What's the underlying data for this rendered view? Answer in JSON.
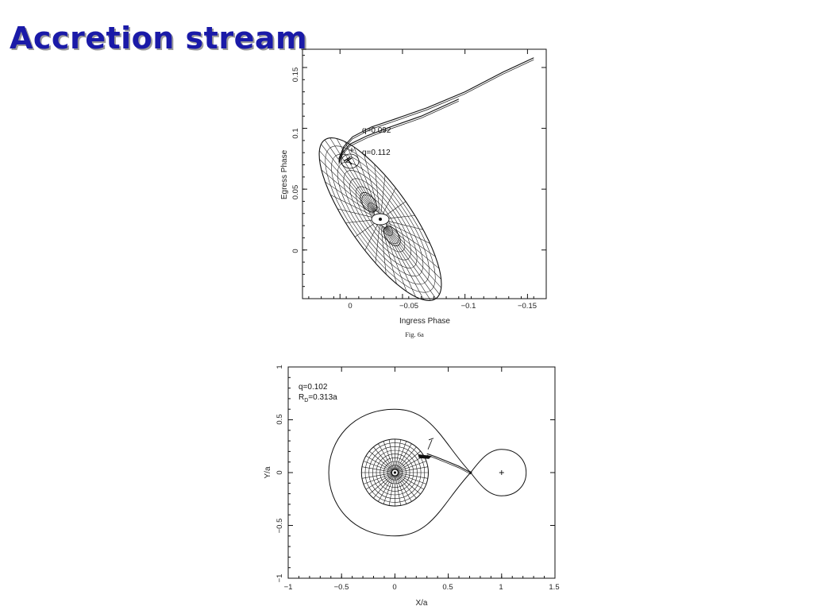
{
  "slide": {
    "title": "Accretion stream"
  },
  "chart_data": [
    {
      "type": "line",
      "title": "",
      "caption": "Fig. 6a",
      "xlabel": "Ingress Phase",
      "ylabel": "Egress Phase",
      "xlim": [
        0.03,
        -0.165
      ],
      "ylim": [
        -0.04,
        0.165
      ],
      "x_reversed": true,
      "x_ticks": [
        "0",
        "−0.05",
        "−0.1",
        "−0.15"
      ],
      "y_ticks": [
        "0",
        "0.05",
        "0.1",
        "0.15"
      ],
      "annotations": [
        {
          "text": "q=0.092",
          "x": -0.012,
          "y": 0.101
        },
        {
          "text": "q=0.112",
          "x": -0.012,
          "y": 0.081
        }
      ],
      "series": [
        {
          "name": "q=0.092",
          "x": [
            0.001,
            -0.003,
            -0.01,
            -0.025,
            -0.045,
            -0.07,
            -0.1,
            -0.13,
            -0.155
          ],
          "y": [
            0.075,
            0.085,
            0.093,
            0.101,
            0.108,
            0.117,
            0.13,
            0.146,
            0.158
          ]
        },
        {
          "name": "q=0.112",
          "x": [
            0.001,
            -0.002,
            -0.008,
            -0.022,
            -0.04,
            -0.065,
            -0.095
          ],
          "y": [
            0.072,
            0.08,
            0.087,
            0.094,
            0.101,
            0.11,
            0.124
          ]
        }
      ]
    },
    {
      "type": "line",
      "title": "",
      "xlabel": "X/a",
      "ylabel": "Y/a",
      "xlim": [
        -1,
        1.5
      ],
      "ylim": [
        -1,
        1
      ],
      "x_ticks": [
        "−1",
        "−0.5",
        "0",
        "0.5",
        "1",
        "1.5"
      ],
      "y_ticks": [
        "−1",
        "−0.5",
        "0",
        "0.5",
        "1"
      ],
      "annotations": [
        {
          "text": "q=0.102"
        },
        {
          "text": "R",
          "sub": "D",
          "suffix": "=0.313a"
        }
      ],
      "series": [
        {
          "name": "accretion stream",
          "x": [
            0.71,
            0.6,
            0.48,
            0.38,
            0.3
          ],
          "y": [
            0.0,
            0.06,
            0.11,
            0.15,
            0.18
          ]
        }
      ]
    }
  ]
}
